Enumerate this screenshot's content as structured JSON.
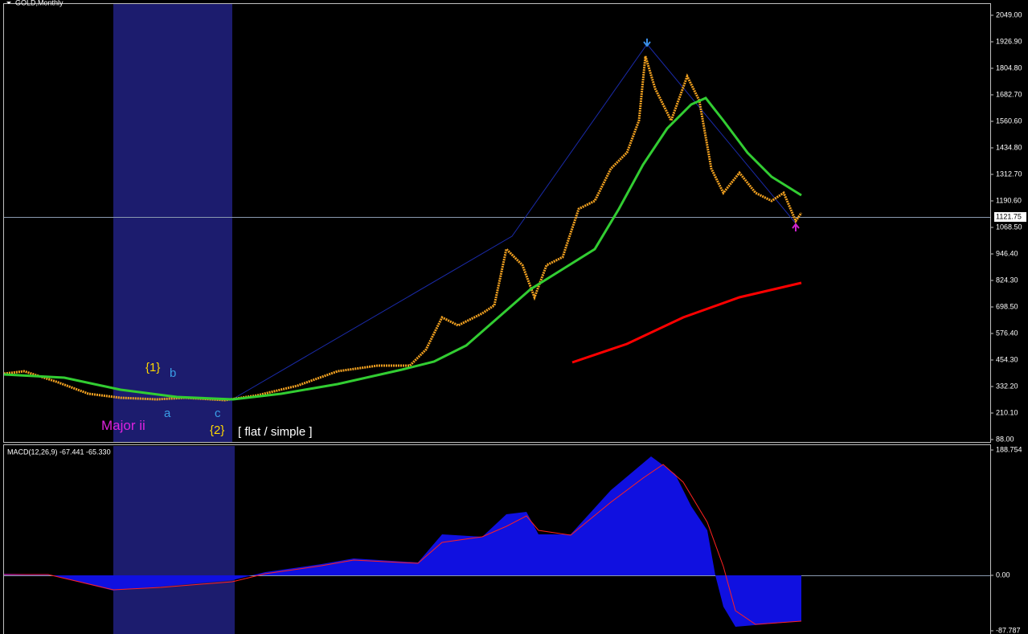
{
  "header": {
    "symbol": "GOLD,Monthly"
  },
  "price_axis": {
    "labels": [
      "2049.00",
      "1926.90",
      "1804.80",
      "1682.70",
      "1560.60",
      "1434.80",
      "1312.70",
      "1190.60",
      "1068.50",
      "946.40",
      "824.30",
      "698.50",
      "576.40",
      "454.30",
      "332.20",
      "210.10",
      "88.00"
    ],
    "current_price": "1121.75"
  },
  "annotations": {
    "wave_1": "{1}",
    "wave_b": "b",
    "wave_a": "a",
    "wave_c": "c",
    "major": "Major ii",
    "wave_2": "{2}",
    "pattern": "[ flat / simple ]"
  },
  "indicator": {
    "label": "MACD(12,26,9) -67.441 -65.330",
    "axis_labels": [
      "188.754",
      "0.00",
      "-87.787"
    ]
  }
}
